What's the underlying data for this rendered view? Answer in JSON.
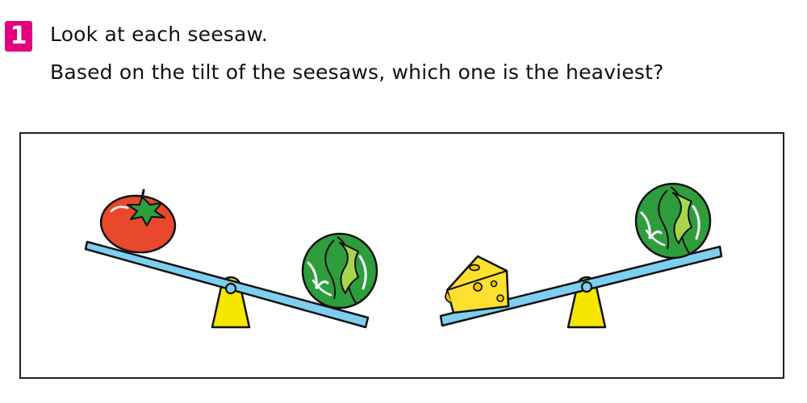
{
  "question": {
    "number": "1",
    "line1": "Look at each seesaw.",
    "line2": "Based on the tilt of the seesaws, which one is the heaviest?"
  },
  "colors": {
    "badge": "#e5007e",
    "plank": "#7dcfef",
    "fulcrum": "#f6e600",
    "tomato": "#e8482b",
    "tomato_leaves": "#2e9e3c",
    "cabbage": "#2e9e3c",
    "cabbage_light": "#a8d64a",
    "cheese": "#fde12e"
  },
  "seesaws": [
    {
      "left_item": "tomato",
      "right_item": "cabbage",
      "lower_side": "right"
    },
    {
      "left_item": "cheese",
      "right_item": "cabbage",
      "lower_side": "left"
    }
  ]
}
